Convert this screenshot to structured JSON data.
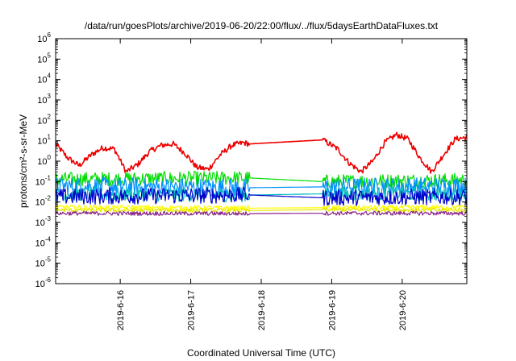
{
  "chart_data": {
    "type": "line",
    "title": "/data/run/goesPlots/archive/2019-06-20/22:00/flux/../flux/5daysEarthDataFluxes.txt",
    "xlabel": "Coordinated Universal Time (UTC)",
    "ylabel": "protons/cm²-s-sr-MeV",
    "y_scale": "log",
    "ylim": [
      1e-06,
      1000000.0
    ],
    "xlim": [
      "2019-06-15T02:00",
      "2019-06-20T22:00"
    ],
    "grid": false,
    "legend": "none",
    "x_ticks": [
      "2019-6-16",
      "2019-6-17",
      "2019-6-18",
      "2019-6-19",
      "2019-6-20"
    ],
    "y_ticks": [
      {
        "value": 1e-06,
        "base": "10",
        "exp": "-6"
      },
      {
        "value": 1e-05,
        "base": "10",
        "exp": "-5"
      },
      {
        "value": 0.0001,
        "base": "10",
        "exp": "-4"
      },
      {
        "value": 0.001,
        "base": "10",
        "exp": "-3"
      },
      {
        "value": 0.01,
        "base": "10",
        "exp": "-2"
      },
      {
        "value": 0.1,
        "base": "10",
        "exp": "-1"
      },
      {
        "value": 1.0,
        "base": "10",
        "exp": "0"
      },
      {
        "value": 10.0,
        "base": "10",
        "exp": "1"
      },
      {
        "value": 100.0,
        "base": "10",
        "exp": "2"
      },
      {
        "value": 1000.0,
        "base": "10",
        "exp": "3"
      },
      {
        "value": 10000.0,
        "base": "10",
        "exp": "4"
      },
      {
        "value": 100000.0,
        "base": "10",
        "exp": "5"
      },
      {
        "value": 1000000.0,
        "base": "10",
        "exp": "6"
      }
    ],
    "gap": [
      "2019-06-17T20:00",
      "2019-06-18T21:00"
    ],
    "series": [
      {
        "color": "#ee0000",
        "x": [
          "2019-06-15T02:00",
          "2019-06-15T06:00",
          "2019-06-15T10:00",
          "2019-06-15T14:00",
          "2019-06-15T18:00",
          "2019-06-15T22:00",
          "2019-06-16T02:00",
          "2019-06-16T06:00",
          "2019-06-16T10:00",
          "2019-06-16T14:00",
          "2019-06-16T18:00",
          "2019-06-16T22:00",
          "2019-06-17T02:00",
          "2019-06-17T06:00",
          "2019-06-17T10:00",
          "2019-06-17T14:00",
          "2019-06-17T18:00",
          "2019-06-17T20:00",
          "2019-06-18T21:00",
          "2019-06-19T02:00",
          "2019-06-19T06:00",
          "2019-06-19T10:00",
          "2019-06-19T14:00",
          "2019-06-19T18:00",
          "2019-06-19T22:00",
          "2019-06-20T02:00",
          "2019-06-20T06:00",
          "2019-06-20T10:00",
          "2019-06-20T14:00",
          "2019-06-20T18:00",
          "2019-06-20T22:00"
        ],
        "y": [
          7,
          1.5,
          0.6,
          2,
          4.5,
          4,
          0.3,
          0.7,
          3,
          6,
          7,
          2.5,
          0.5,
          0.4,
          2,
          6,
          8,
          7,
          11,
          4,
          0.8,
          0.3,
          1,
          8,
          20,
          12,
          1.5,
          0.3,
          2,
          12,
          15
        ]
      },
      {
        "color": "#00dd00",
        "x": [
          "2019-06-15T02:00",
          "2019-06-17T20:00",
          "2019-06-18T21:00",
          "2019-06-20T22:00"
        ],
        "y": [
          0.13,
          0.15,
          0.1,
          0.12
        ]
      },
      {
        "color": "#0090ff",
        "x": [
          "2019-06-15T02:00",
          "2019-06-17T20:00",
          "2019-06-18T21:00",
          "2019-06-20T22:00"
        ],
        "y": [
          0.06,
          0.05,
          0.055,
          0.06
        ]
      },
      {
        "color": "#00bbbb",
        "x": [
          "2019-06-15T02:00",
          "2019-06-17T20:00",
          "2019-06-18T21:00",
          "2019-06-20T22:00"
        ],
        "y": [
          0.025,
          0.022,
          0.025,
          0.025
        ]
      },
      {
        "color": "#0000cc",
        "x": [
          "2019-06-15T02:00",
          "2019-06-17T20:00",
          "2019-06-18T21:00",
          "2019-06-20T22:00"
        ],
        "y": [
          0.018,
          0.022,
          0.016,
          0.018
        ]
      },
      {
        "color": "#ffff00",
        "x": [
          "2019-06-15T02:00",
          "2019-06-17T20:00",
          "2019-06-18T21:00",
          "2019-06-20T22:00"
        ],
        "y": [
          0.0055,
          0.005,
          0.0052,
          0.0055
        ]
      },
      {
        "color": "#e6e600",
        "x": [
          "2019-06-15T02:00",
          "2019-06-17T20:00",
          "2019-06-18T21:00",
          "2019-06-20T22:00"
        ],
        "y": [
          0.004,
          0.0038,
          0.0042,
          0.004
        ]
      },
      {
        "color": "#882288",
        "x": [
          "2019-06-15T02:00",
          "2019-06-17T20:00",
          "2019-06-18T21:00",
          "2019-06-20T22:00"
        ],
        "y": [
          0.0028,
          0.0027,
          0.0028,
          0.0028
        ]
      }
    ]
  }
}
